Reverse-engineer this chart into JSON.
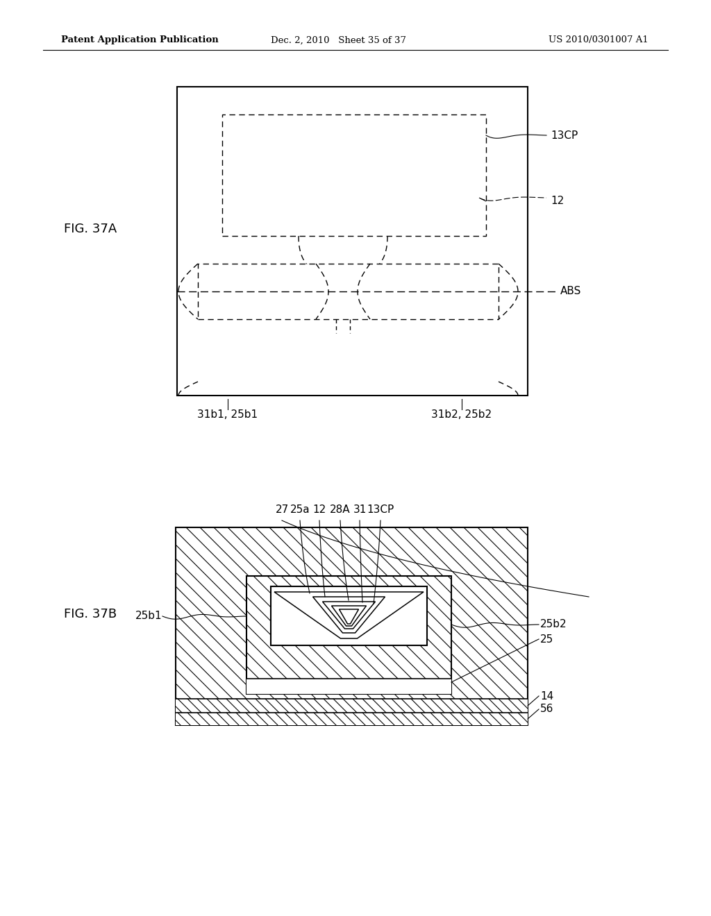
{
  "bg_color": "#ffffff",
  "header_left": "Patent Application Publication",
  "header_center": "Dec. 2, 2010   Sheet 35 of 37",
  "header_right": "US 2010/0301007 A1",
  "fig37a_label": "FIG. 37A",
  "fig37b_label": "FIG. 37B",
  "label_13CP_a": "13CP",
  "label_12_a": "12",
  "label_ABS": "ABS",
  "label_31b1_25b1": "31b1, 25b1",
  "label_31b2_25b2": "31b2, 25b2",
  "label_27": "27",
  "label_25a": "25a",
  "label_12_b": "12",
  "label_28A": "28A",
  "label_31": "31",
  "label_13CP_b": "13CP",
  "label_25b1_b": "25b1",
  "label_25b2_b": "25b2",
  "label_25": "25",
  "label_14": "14",
  "label_56": "56"
}
